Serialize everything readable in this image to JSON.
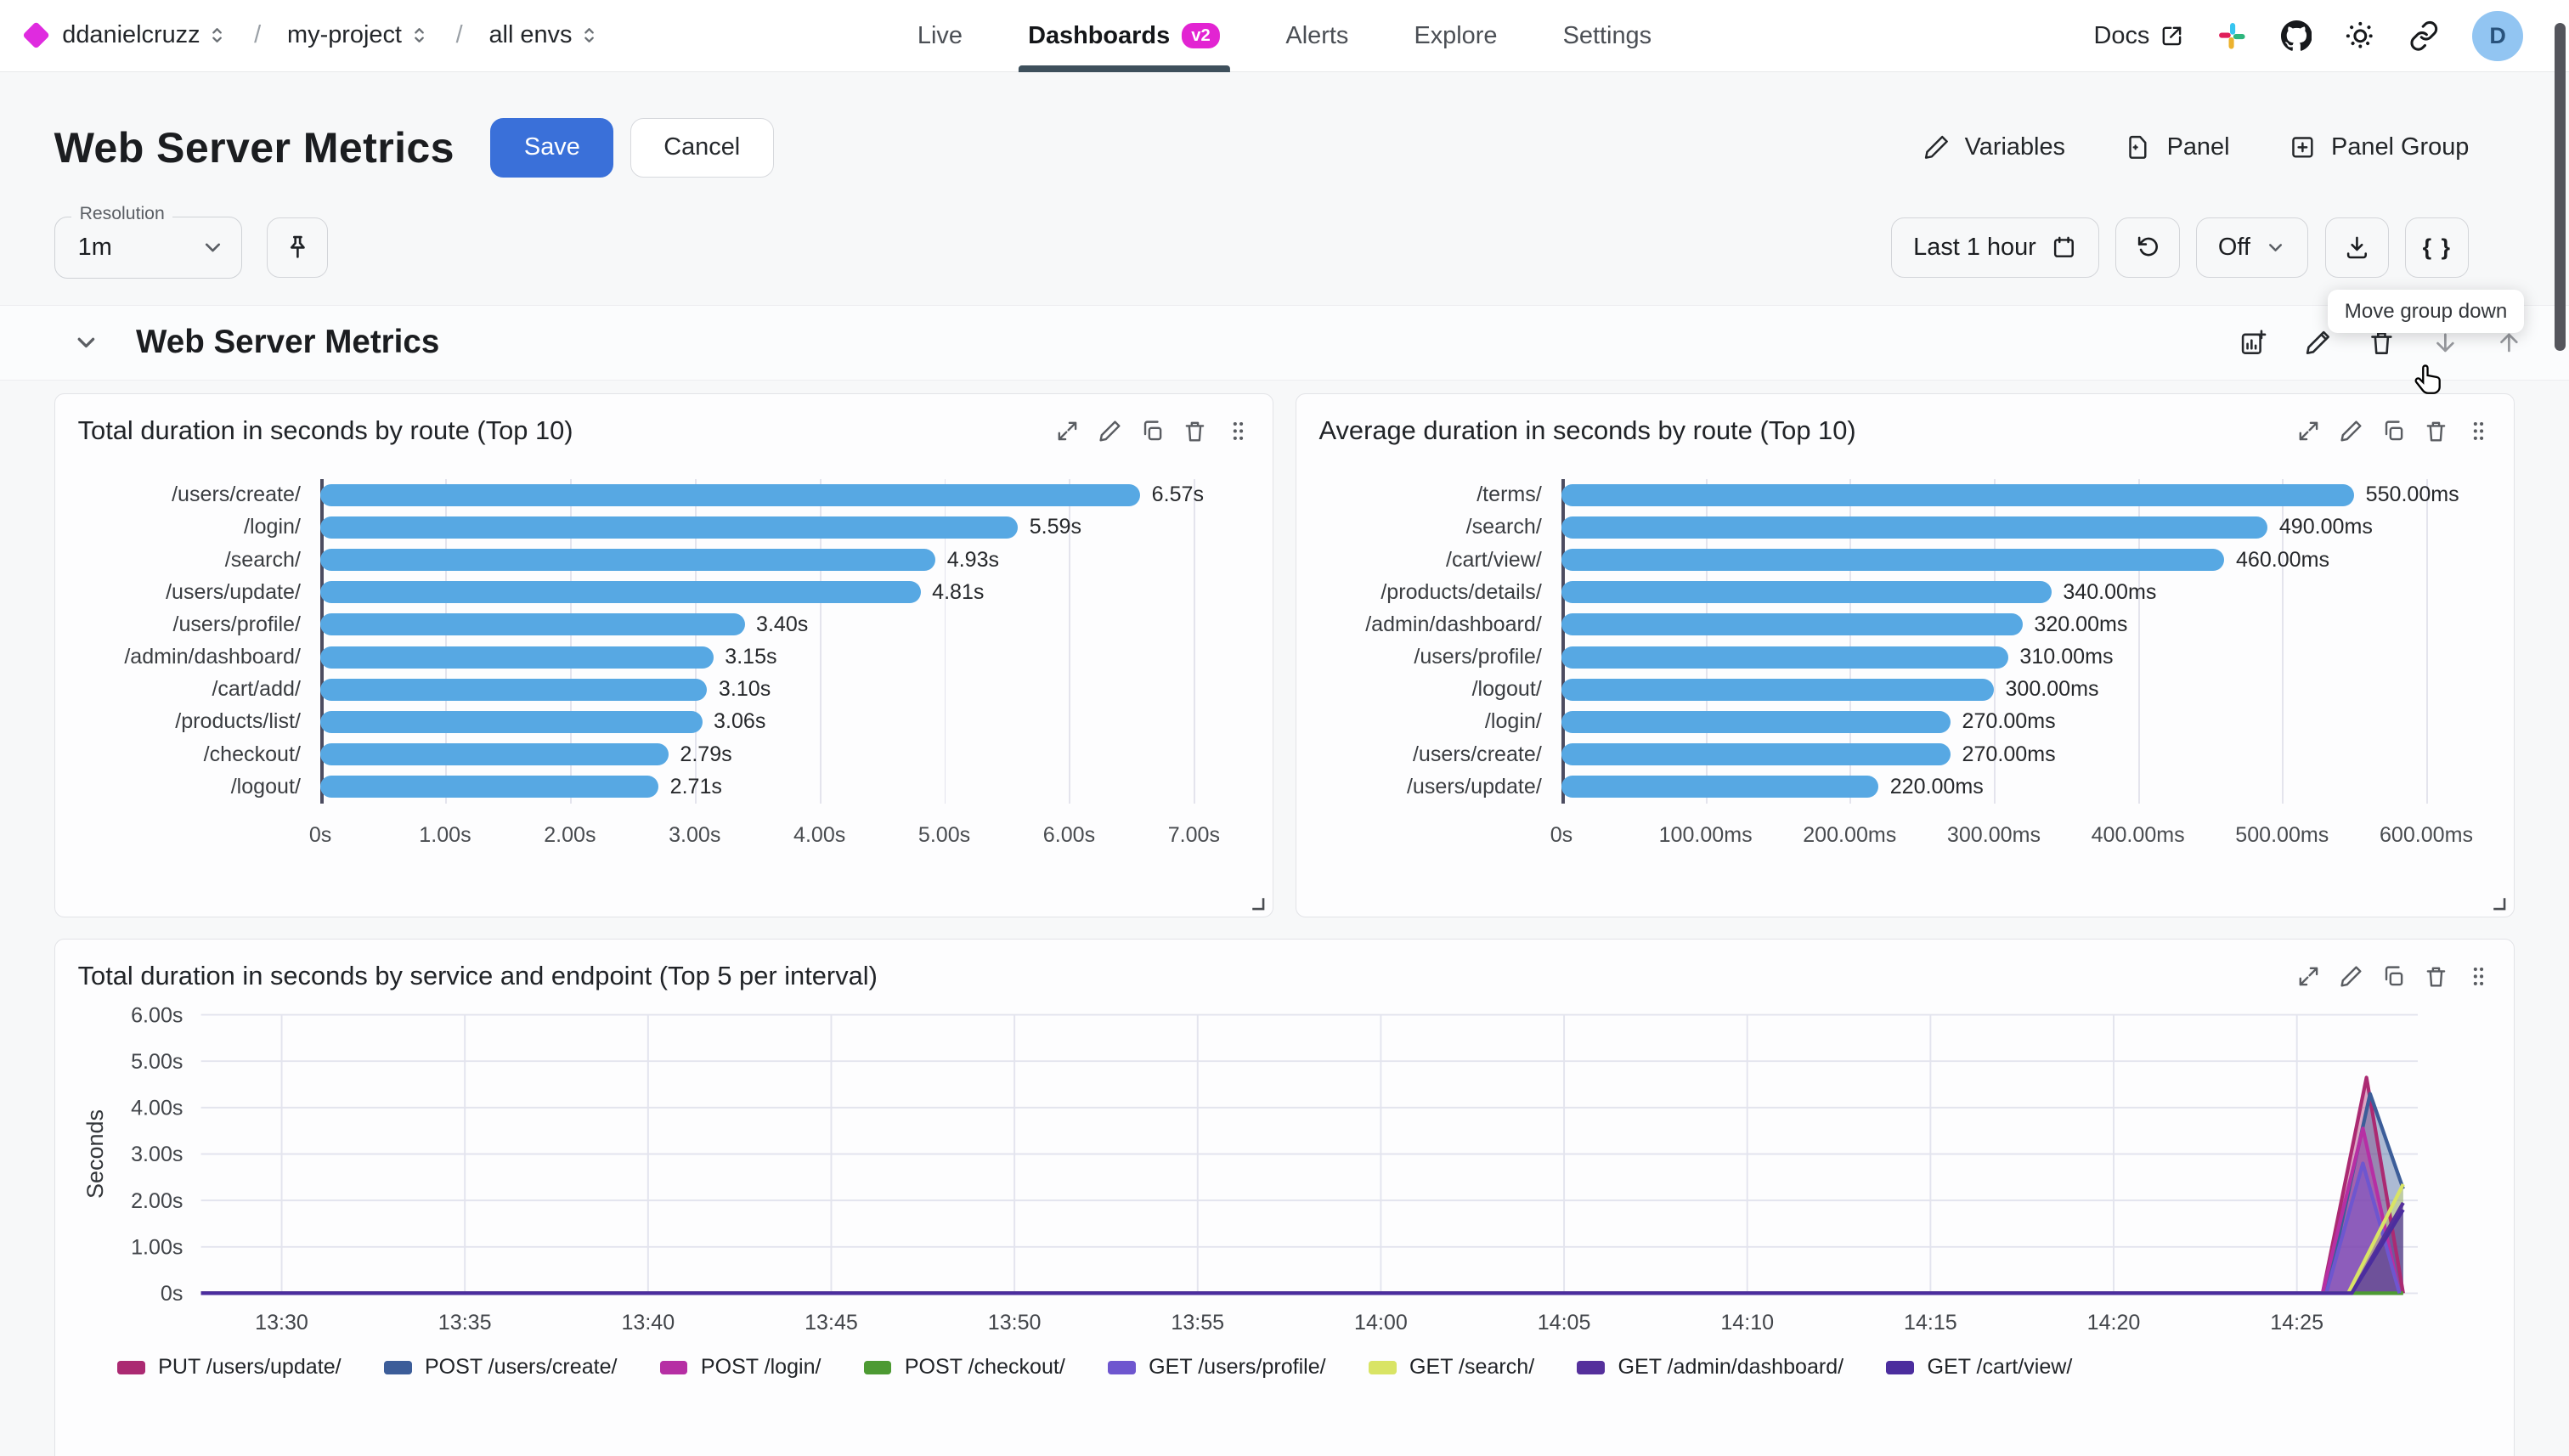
{
  "header": {
    "breadcrumb": {
      "org": "ddanielcruzz",
      "project": "my-project",
      "env": "all envs",
      "separator": "/"
    },
    "nav": [
      {
        "label": "Live",
        "active": false
      },
      {
        "label": "Dashboards",
        "active": true,
        "badge": "v2"
      },
      {
        "label": "Alerts",
        "active": false
      },
      {
        "label": "Explore",
        "active": false
      },
      {
        "label": "Settings",
        "active": false
      }
    ],
    "docs_label": "Docs",
    "icons": [
      "external-link-icon",
      "slack-icon",
      "github-icon",
      "sun-icon",
      "link-icon"
    ],
    "avatar_letter": "D"
  },
  "page": {
    "title": "Web Server Metrics",
    "save_label": "Save",
    "cancel_label": "Cancel",
    "actions": [
      {
        "label": "Variables",
        "icon": "pencil-icon"
      },
      {
        "label": "Panel",
        "icon": "file-plus-icon"
      },
      {
        "label": "Panel Group",
        "icon": "square-plus-icon"
      }
    ]
  },
  "toolbar": {
    "resolution_label": "Resolution",
    "resolution_value": "1m",
    "pin_icon": "pin-icon",
    "time_range": "Last 1 hour",
    "refresh_icon": "refresh-icon",
    "auto_refresh": "Off",
    "download_icon": "download-icon",
    "braces_label": "{ }",
    "tooltip": "Move group down"
  },
  "group": {
    "title": "Web Server Metrics",
    "icons": [
      "add-panel-icon",
      "edit-icon",
      "delete-icon",
      "move-down-icon",
      "move-up-icon"
    ]
  },
  "panel_toolbar_icons": [
    "expand-icon",
    "edit-icon",
    "duplicate-icon",
    "delete-icon",
    "drag-handle-icon"
  ],
  "chart_data": [
    {
      "type": "bar",
      "orientation": "horizontal",
      "title": "Total duration in seconds by route (Top 10)",
      "categories": [
        "/users/create/",
        "/login/",
        "/search/",
        "/users/update/",
        "/users/profile/",
        "/admin/dashboard/",
        "/cart/add/",
        "/products/list/",
        "/checkout/",
        "/logout/"
      ],
      "values": [
        6.57,
        5.59,
        4.93,
        4.81,
        3.4,
        3.15,
        3.1,
        3.06,
        2.79,
        2.71
      ],
      "value_labels": [
        "6.57s",
        "5.59s",
        "4.93s",
        "4.81s",
        "3.40s",
        "3.15s",
        "3.10s",
        "3.06s",
        "2.79s",
        "2.71s"
      ],
      "ticks": [
        [
          0,
          "0s"
        ],
        [
          1,
          "1.00s"
        ],
        [
          2,
          "2.00s"
        ],
        [
          3,
          "3.00s"
        ],
        [
          4,
          "4.00s"
        ],
        [
          5,
          "5.00s"
        ],
        [
          6,
          "6.00s"
        ],
        [
          7,
          "7.00s"
        ]
      ],
      "xmax": 7.45,
      "bar_color": "#57a8e3",
      "grid": true
    },
    {
      "type": "bar",
      "orientation": "horizontal",
      "title": "Average duration in seconds by route (Top 10)",
      "categories": [
        "/terms/",
        "/search/",
        "/cart/view/",
        "/products/details/",
        "/admin/dashboard/",
        "/users/profile/",
        "/logout/",
        "/login/",
        "/users/create/",
        "/users/update/"
      ],
      "values": [
        550,
        490,
        460,
        340,
        320,
        310,
        300,
        270,
        270,
        220
      ],
      "value_labels": [
        "550.00ms",
        "490.00ms",
        "460.00ms",
        "340.00ms",
        "320.00ms",
        "310.00ms",
        "300.00ms",
        "270.00ms",
        "270.00ms",
        "220.00ms"
      ],
      "ticks": [
        [
          0,
          "0s"
        ],
        [
          100,
          "100.00ms"
        ],
        [
          200,
          "200.00ms"
        ],
        [
          300,
          "300.00ms"
        ],
        [
          400,
          "400.00ms"
        ],
        [
          500,
          "500.00ms"
        ],
        [
          600,
          "600.00ms"
        ]
      ],
      "xmax": 645,
      "bar_color": "#57a8e3",
      "grid": true
    },
    {
      "type": "area",
      "title": "Total duration in seconds by service and endpoint (Top 5 per interval)",
      "ylabel": "Seconds",
      "y_ticks": [
        [
          6,
          "6.00s"
        ],
        [
          5,
          "5.00s"
        ],
        [
          4,
          "4.00s"
        ],
        [
          3,
          "3.00s"
        ],
        [
          2,
          "2.00s"
        ],
        [
          1,
          "1.00s"
        ],
        [
          0,
          "0s"
        ]
      ],
      "x_ticks": [
        [
          0,
          "13:30"
        ],
        [
          5,
          "13:35"
        ],
        [
          10,
          "13:40"
        ],
        [
          15,
          "13:45"
        ],
        [
          20,
          "13:50"
        ],
        [
          25,
          "13:55"
        ],
        [
          30,
          "14:00"
        ],
        [
          35,
          "14:05"
        ],
        [
          40,
          "14:10"
        ],
        [
          45,
          "14:15"
        ],
        [
          50,
          "14:20"
        ],
        [
          55,
          "14:25"
        ]
      ],
      "x_domain_minutes": [
        -2.2,
        58.3
      ],
      "ylim": [
        0,
        6
      ],
      "legend_position": "bottom",
      "grid": true,
      "series": [
        {
          "name": "PUT /users/update/",
          "color": "#ab2a72",
          "points": [
            [
              -2.2,
              0
            ],
            [
              55.7,
              0
            ],
            [
              56.9,
              4.65
            ],
            [
              57.9,
              0
            ]
          ]
        },
        {
          "name": "POST /users/create/",
          "color": "#3c5d99",
          "points": [
            [
              -2.2,
              0
            ],
            [
              55.8,
              0
            ],
            [
              57.0,
              4.3
            ],
            [
              57.9,
              2.25
            ]
          ]
        },
        {
          "name": "POST /login/",
          "color": "#b62fa4",
          "points": [
            [
              -2.2,
              0
            ],
            [
              55.7,
              0
            ],
            [
              56.8,
              3.55
            ],
            [
              57.8,
              0
            ]
          ]
        },
        {
          "name": "POST /checkout/",
          "color": "#4d9a33",
          "points": [
            [
              -2.2,
              0
            ],
            [
              57.9,
              0
            ]
          ]
        },
        {
          "name": "GET /users/profile/",
          "color": "#6e56cf",
          "points": [
            [
              -2.2,
              0
            ],
            [
              55.8,
              0
            ],
            [
              56.8,
              2.8
            ],
            [
              57.8,
              0
            ]
          ]
        },
        {
          "name": "GET /search/",
          "color": "#d9e465",
          "points": [
            [
              -2.2,
              0
            ],
            [
              56.4,
              0
            ],
            [
              57.9,
              2.35
            ]
          ]
        },
        {
          "name": "GET /admin/dashboard/",
          "color": "#55309c",
          "points": [
            [
              -2.2,
              0
            ],
            [
              56.5,
              0
            ],
            [
              57.9,
              1.95
            ]
          ]
        },
        {
          "name": "GET /cart/view/",
          "color": "#4b2d9e",
          "points": [
            [
              -2.2,
              0
            ],
            [
              56.5,
              0
            ],
            [
              57.9,
              1.8
            ]
          ]
        }
      ]
    }
  ]
}
